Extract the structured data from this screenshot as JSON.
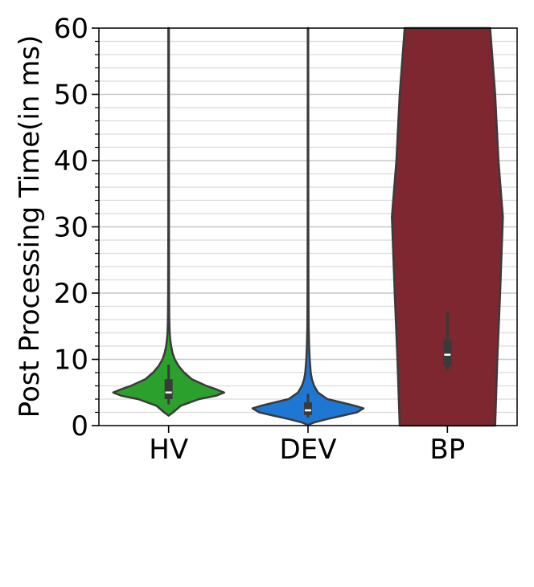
{
  "chart_data": {
    "type": "violin",
    "title": "",
    "xlabel": "",
    "ylabel": "Post Processing Time(in ms)",
    "ylim": [
      0,
      60
    ],
    "yticks": [
      0,
      10,
      20,
      30,
      40,
      50,
      60
    ],
    "ytick_labels": [
      "0",
      "10",
      "20",
      "30",
      "40",
      "50",
      "60"
    ],
    "y_minor_step": 2,
    "grid": true,
    "categories": [
      "HV",
      "DEV",
      "BP"
    ],
    "series": [
      {
        "category": "HV",
        "color": "#2ca02c",
        "outline_color": "#3a3a3a",
        "box": {
          "q1": 4.0,
          "median": 5.0,
          "q3": 7.0,
          "whisker_low": 3.2,
          "whisker_high": 9.2
        },
        "shape": [
          [
            1.5,
            0.0
          ],
          [
            2.0,
            0.08
          ],
          [
            3.0,
            0.22
          ],
          [
            4.0,
            0.55
          ],
          [
            4.5,
            0.85
          ],
          [
            5.0,
            1.0
          ],
          [
            5.5,
            0.85
          ],
          [
            6.0,
            0.68
          ],
          [
            6.5,
            0.55
          ],
          [
            7.0,
            0.42
          ],
          [
            8.0,
            0.28
          ],
          [
            9.0,
            0.18
          ],
          [
            10.0,
            0.11
          ],
          [
            11.0,
            0.07
          ],
          [
            12.0,
            0.045
          ],
          [
            13.0,
            0.03
          ],
          [
            14.0,
            0.02
          ],
          [
            16.0,
            0.012
          ],
          [
            20.0,
            0.008
          ],
          [
            30.0,
            0.006
          ],
          [
            60.0,
            0.005
          ]
        ]
      },
      {
        "category": "DEV",
        "color": "#1f77d4",
        "outline_color": "#3a3a3a",
        "box": {
          "q1": 1.6,
          "median": 2.3,
          "q3": 3.5,
          "whisker_low": 1.2,
          "whisker_high": 4.8
        },
        "shape": [
          [
            0.1,
            0.0
          ],
          [
            0.5,
            0.12
          ],
          [
            1.0,
            0.35
          ],
          [
            1.5,
            0.62
          ],
          [
            2.0,
            0.88
          ],
          [
            2.6,
            1.0
          ],
          [
            3.0,
            0.85
          ],
          [
            3.5,
            0.6
          ],
          [
            4.0,
            0.35
          ],
          [
            5.0,
            0.18
          ],
          [
            6.0,
            0.11
          ],
          [
            7.0,
            0.07
          ],
          [
            8.0,
            0.05
          ],
          [
            10.0,
            0.03
          ],
          [
            12.0,
            0.02
          ],
          [
            15.0,
            0.012
          ],
          [
            20.0,
            0.008
          ],
          [
            30.0,
            0.006
          ],
          [
            60.0,
            0.005
          ]
        ]
      },
      {
        "category": "BP",
        "color": "#7f2730",
        "outline_color": "#3a3a3a",
        "box": {
          "q1": 9.0,
          "median": 10.7,
          "q3": 13.0,
          "whisker_low": 8.3,
          "whisker_high": 17.2
        },
        "shape": [
          [
            0.0,
            0.86
          ],
          [
            10.0,
            0.9
          ],
          [
            20.0,
            0.95
          ],
          [
            31.5,
            1.0
          ],
          [
            40.0,
            0.92
          ],
          [
            50.0,
            0.86
          ],
          [
            60.0,
            0.77
          ]
        ]
      }
    ]
  }
}
